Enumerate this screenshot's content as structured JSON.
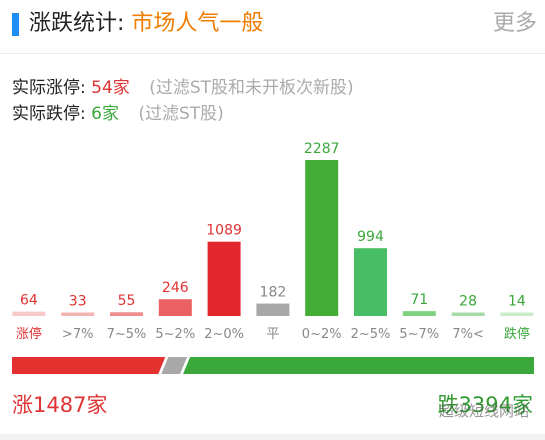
{
  "header": {
    "title": "涨跌统计:",
    "sentiment": "市场人气一般",
    "more_label": "更多"
  },
  "stats": {
    "limit_up_label": "实际涨停:",
    "limit_up_value": "54家",
    "limit_up_note": "(过滤ST股和未开板次新股)",
    "limit_down_label": "实际跌停:",
    "limit_down_value": "6家",
    "limit_down_note": "(过滤ST股)"
  },
  "totals": {
    "up_label": "涨1487家",
    "down_label": "跌3394家"
  },
  "watermark": "超级短线网站",
  "colors": {
    "up": "#e53030",
    "down": "#3aa83a",
    "flat": "#a8a8a8",
    "sentiment": "#f07c00",
    "accent": "#1e8df5"
  },
  "chart_data": {
    "type": "bar",
    "categories": [
      "涨停",
      ">7%",
      "7~5%",
      "5~2%",
      "2~0%",
      "平",
      "0~2%",
      "2~5%",
      "5~7%",
      "7%<",
      "跌停"
    ],
    "values": [
      64,
      33,
      55,
      246,
      1089,
      182,
      2287,
      994,
      71,
      28,
      14
    ],
    "bar_colors": [
      "#f7c9c9",
      "#f3b3b3",
      "#ee8e8e",
      "#eb6060",
      "#e3262b",
      "#a8a8a8",
      "#43ad36",
      "#48bd65",
      "#7fd07f",
      "#a6dca6",
      "#c8ebc8"
    ],
    "label_colors": [
      "#e03333",
      "#e03333",
      "#e03333",
      "#e03333",
      "#e03333",
      "#888888",
      "#3aa83a",
      "#3aa83a",
      "#3aa83a",
      "#3aa83a",
      "#3aa83a"
    ],
    "category_colors": [
      "#e03333",
      "#888888",
      "#888888",
      "#888888",
      "#888888",
      "#888888",
      "#888888",
      "#888888",
      "#888888",
      "#888888",
      "#3aa83a"
    ],
    "ratio": {
      "up": 1487,
      "flat": 182,
      "down": 3394
    }
  }
}
